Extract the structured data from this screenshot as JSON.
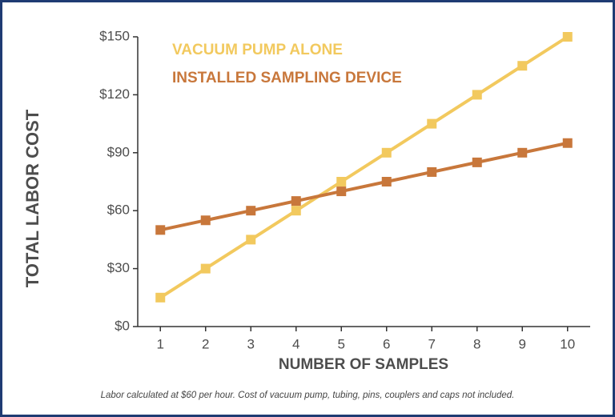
{
  "chart_data": {
    "type": "line",
    "xlabel": "NUMBER OF SAMPLES",
    "ylabel": "TOTAL LABOR COST",
    "note": "Labor calculated at $60 per hour. Cost of vacuum pump, tubing, pins, couplers and caps not included.",
    "x": [
      1,
      2,
      3,
      4,
      5,
      6,
      7,
      8,
      9,
      10
    ],
    "series": [
      {
        "name": "VACUUM PUMP ALONE",
        "color": "#f2c95e",
        "values": [
          15,
          30,
          45,
          60,
          75,
          90,
          105,
          120,
          135,
          150
        ]
      },
      {
        "name": "INSTALLED SAMPLING DEVICE",
        "color": "#c8773b",
        "values": [
          50,
          55,
          60,
          65,
          70,
          75,
          80,
          85,
          90,
          95
        ]
      }
    ],
    "xlim": [
      0.5,
      10.5
    ],
    "xticks": [
      1,
      2,
      3,
      4,
      5,
      6,
      7,
      8,
      9,
      10
    ],
    "ylim": [
      0,
      150
    ],
    "yticks": [
      {
        "value": 0,
        "label": "$0"
      },
      {
        "value": 30,
        "label": "$30"
      },
      {
        "value": 60,
        "label": "$60"
      },
      {
        "value": 90,
        "label": "$90"
      },
      {
        "value": 120,
        "label": "$120"
      },
      {
        "value": 150,
        "label": "$150"
      }
    ],
    "grid": false
  }
}
